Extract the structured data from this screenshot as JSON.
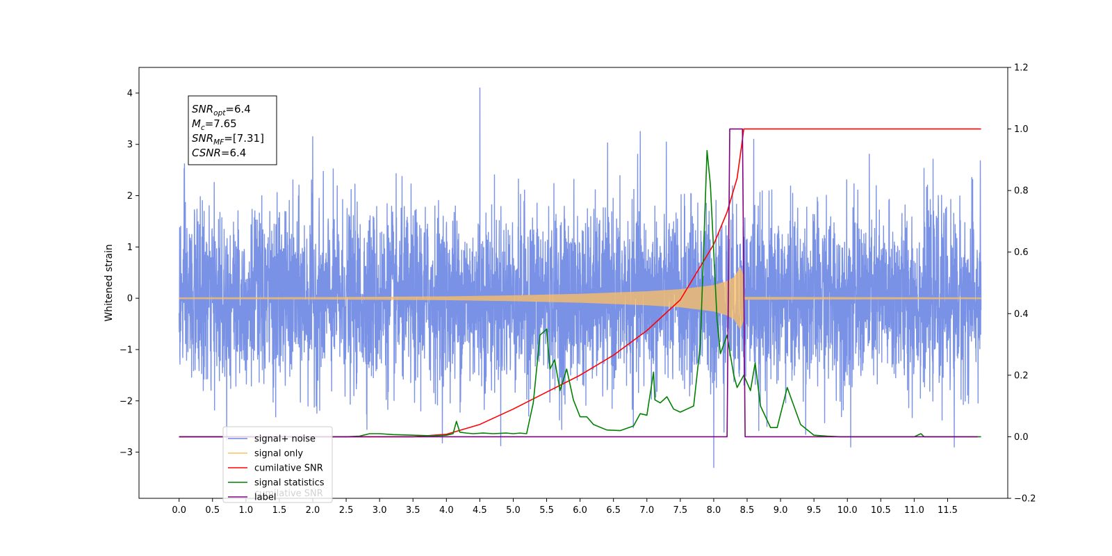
{
  "chart_data": {
    "type": "line",
    "title": "",
    "xlabel": "",
    "ylabel": "Whitened strain",
    "xlim": [
      -0.6,
      12.4
    ],
    "ylim": [
      -3.9,
      4.5
    ],
    "y2lim": [
      -0.2,
      1.2
    ],
    "grid": false,
    "legend_position": "lower-left",
    "x_ticks": [
      0.0,
      0.5,
      1.0,
      1.5,
      2.0,
      2.5,
      3.0,
      3.5,
      4.0,
      4.5,
      5.0,
      5.5,
      6.0,
      6.5,
      7.0,
      7.5,
      8.0,
      8.5,
      9.0,
      9.5,
      10.0,
      10.5,
      11.0,
      11.5
    ],
    "x_tick_labels": [
      "0.0",
      "0.5",
      "1.0",
      "1.5",
      "2.0",
      "2.5",
      "3.0",
      "3.5",
      "4.0",
      "4.5",
      "5.0",
      "5.5",
      "6.0",
      "6.5",
      "7.0",
      "7.5",
      "8.0",
      "8.5",
      "9.0",
      "9.5",
      "10.0",
      "10.5",
      "11.0",
      "11.5"
    ],
    "y_ticks": [
      -3,
      -2,
      -1,
      0,
      1,
      2,
      3,
      4
    ],
    "y_tick_labels": [
      "−3",
      "−2",
      "−1",
      "0",
      "1",
      "2",
      "3",
      "4"
    ],
    "y2_ticks": [
      -0.2,
      0.0,
      0.2,
      0.4,
      0.6,
      0.8,
      1.0,
      1.2
    ],
    "y2_tick_labels": [
      "−0.2",
      "0.0",
      "0.2",
      "0.4",
      "0.6",
      "0.8",
      "1.0",
      "1.2"
    ],
    "info_box": {
      "lines": [
        {
          "main": "SNR",
          "sub": "opt",
          "rest": "=6.4"
        },
        {
          "main": "M",
          "sub": "c",
          "rest": "=7.65"
        },
        {
          "main": "SNR",
          "sub": "MF",
          "rest": "=[7.31]"
        },
        {
          "main": "CSNR",
          "sub": "",
          "rest": "=6.4"
        }
      ]
    },
    "legend": [
      {
        "label": "signal+ noise",
        "color": "#6b86e3"
      },
      {
        "label": "signal only",
        "color": "#ffbf60"
      },
      {
        "label": "cumilative SNR",
        "color": "#ff0000"
      },
      {
        "label": "signal statistics",
        "color": "#008000"
      },
      {
        "label": "label",
        "color": "#800080"
      }
    ],
    "legend_hidden_text": "cumilative SNR",
    "series": [
      {
        "name": "signal+ noise",
        "axis": "left",
        "color": "#6b86e3",
        "x_range": [
          0.0,
          12.0
        ],
        "sigma": 0.85,
        "clip": [
          -3.3,
          4.1
        ],
        "peaks": [
          [
            4.5,
            4.1
          ],
          [
            8.0,
            -3.3
          ],
          [
            2.0,
            3.15
          ],
          [
            6.9,
            3.25
          ],
          [
            8.6,
            3.1
          ],
          [
            10.05,
            -2.9
          ],
          [
            11.6,
            -2.9
          ],
          [
            0.08,
            2.62
          ],
          [
            11.99,
            2.68
          ]
        ]
      },
      {
        "name": "signal only",
        "axis": "left",
        "color": "#ffbf60",
        "x_range": [
          0.0,
          12.0
        ],
        "envelope": [
          [
            0.0,
            0.01
          ],
          [
            2.0,
            0.015
          ],
          [
            4.0,
            0.03
          ],
          [
            5.0,
            0.05
          ],
          [
            6.0,
            0.08
          ],
          [
            7.0,
            0.13
          ],
          [
            7.5,
            0.17
          ],
          [
            8.0,
            0.25
          ],
          [
            8.2,
            0.33
          ],
          [
            8.3,
            0.4
          ],
          [
            8.4,
            0.6
          ],
          [
            8.44,
            0.45
          ],
          [
            8.46,
            0.02
          ],
          [
            12.0,
            0.01
          ]
        ]
      },
      {
        "name": "cumilative SNR",
        "axis": "right",
        "color": "#ff0000",
        "x": [
          0.0,
          3.5,
          4.0,
          4.5,
          5.0,
          5.5,
          6.0,
          6.5,
          7.0,
          7.5,
          8.0,
          8.2,
          8.35,
          8.42,
          8.45,
          9.0,
          10.0,
          11.0,
          12.0
        ],
        "y": [
          0.0,
          0.0,
          0.008,
          0.04,
          0.09,
          0.145,
          0.2,
          0.265,
          0.345,
          0.445,
          0.625,
          0.73,
          0.84,
          0.95,
          1.0,
          1.0,
          1.0,
          1.0,
          1.0
        ]
      },
      {
        "name": "signal statistics",
        "axis": "right",
        "color": "#008000",
        "x": [
          0.0,
          2.5,
          2.7,
          2.85,
          3.0,
          3.2,
          3.5,
          3.8,
          4.0,
          4.1,
          4.15,
          4.2,
          4.3,
          4.4,
          4.55,
          4.7,
          4.9,
          5.0,
          5.1,
          5.2,
          5.3,
          5.4,
          5.5,
          5.55,
          5.62,
          5.7,
          5.8,
          5.9,
          6.0,
          6.1,
          6.2,
          6.4,
          6.6,
          6.8,
          6.9,
          7.0,
          7.1,
          7.12,
          7.2,
          7.3,
          7.4,
          7.5,
          7.6,
          7.7,
          7.8,
          7.9,
          7.95,
          8.05,
          8.1,
          8.2,
          8.3,
          8.35,
          8.45,
          8.55,
          8.62,
          8.7,
          8.85,
          8.95,
          9.1,
          9.3,
          9.5,
          9.7,
          9.9,
          10.5,
          11.0,
          11.1,
          11.15,
          11.3,
          11.5,
          12.0
        ],
        "y": [
          0.0,
          0.0,
          0.002,
          0.01,
          0.01,
          0.007,
          0.005,
          0.003,
          0.005,
          0.01,
          0.05,
          0.015,
          0.012,
          0.01,
          0.012,
          0.01,
          0.012,
          0.01,
          0.012,
          0.01,
          0.11,
          0.33,
          0.35,
          0.22,
          0.25,
          0.15,
          0.22,
          0.12,
          0.065,
          0.065,
          0.04,
          0.022,
          0.02,
          0.035,
          0.075,
          0.07,
          0.21,
          0.12,
          0.11,
          0.13,
          0.09,
          0.08,
          0.09,
          0.1,
          0.3,
          0.93,
          0.82,
          0.38,
          0.27,
          0.33,
          0.2,
          0.16,
          0.2,
          0.15,
          0.24,
          0.1,
          0.03,
          0.03,
          0.16,
          0.04,
          0.005,
          0.002,
          0.0,
          0.0,
          0.0,
          0.01,
          0.0,
          0.0,
          0.0,
          0.0
        ]
      },
      {
        "name": "label",
        "axis": "right",
        "color": "#800080",
        "x": [
          0.0,
          8.2,
          8.24,
          8.43,
          8.47,
          11.95
        ],
        "y": [
          0.0,
          0.0,
          1.0,
          1.0,
          0.0,
          0.0
        ]
      }
    ]
  }
}
